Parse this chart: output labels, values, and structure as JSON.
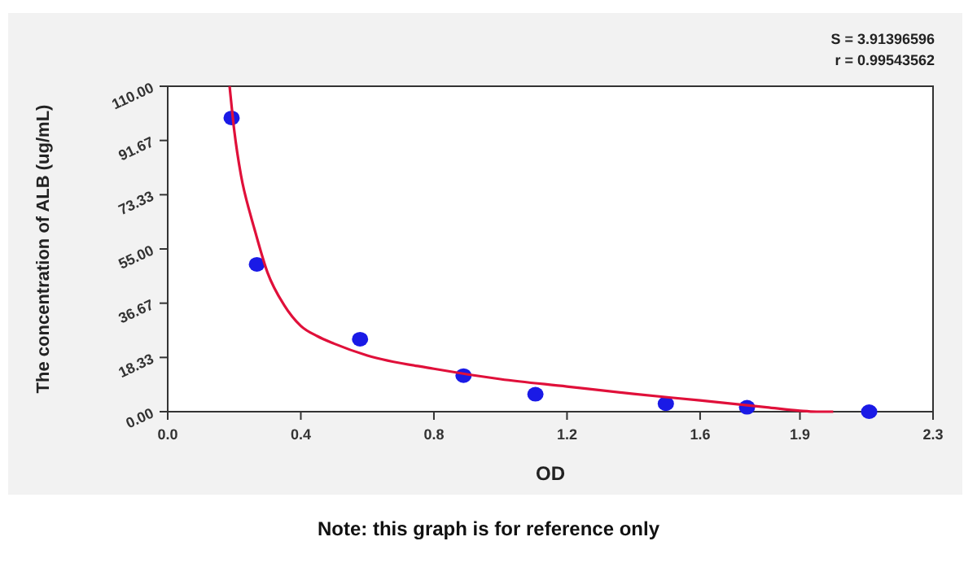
{
  "chart_data": {
    "type": "scatter",
    "xlabel": "OD",
    "ylabel": "The concentration of ALB (ug/mL)",
    "annotations": [
      "S = 3.91396596",
      "r = 0.99543562",
      "Note: this graph is for reference only"
    ],
    "xlim": [
      0,
      2.3
    ],
    "ylim": [
      0,
      110
    ],
    "xticks": [
      {
        "value": 0,
        "label": "0.0"
      },
      {
        "value": 0.4,
        "label": "0.4"
      },
      {
        "value": 0.8,
        "label": "0.8"
      },
      {
        "value": 1.2,
        "label": "1.2"
      },
      {
        "value": 1.6,
        "label": "1.6"
      },
      {
        "value": 1.9,
        "label": "1.9"
      },
      {
        "value": 2.3,
        "label": "2.3"
      }
    ],
    "yticks": [
      {
        "value": 0,
        "label": "0.00"
      },
      {
        "value": 18.33,
        "label": "18.33"
      },
      {
        "value": 36.67,
        "label": "36.67"
      },
      {
        "value": 55,
        "label": "55.00"
      },
      {
        "value": 73.33,
        "label": "73.33"
      },
      {
        "value": 91.67,
        "label": "91.67"
      },
      {
        "value": 110,
        "label": "110.00"
      }
    ],
    "grid": false,
    "series": [
      {
        "color": "#1a1ae6",
        "marker": "circle",
        "x": [
          0.192,
          0.268,
          0.578,
          0.889,
          1.105,
          1.497,
          1.741,
          2.108
        ],
        "values": [
          99.3,
          49.8,
          24.5,
          12.2,
          5.9,
          2.7,
          1.5,
          0
        ]
      },
      {
        "type": "line",
        "color": "#e0103a",
        "marker": "none",
        "x": [
          0.186,
          0.2,
          0.22,
          0.25,
          0.26,
          0.3,
          0.35,
          0.4,
          0.45,
          0.5,
          0.6,
          0.8,
          1.0,
          1.2,
          1.4,
          1.6,
          1.8,
          1.9,
          1.95,
          2.0
        ],
        "values": [
          110,
          95,
          80,
          66,
          62,
          47,
          36,
          29,
          25.5,
          23,
          19,
          14.5,
          11,
          8.5,
          6,
          3.8,
          1.5,
          0.3,
          0,
          0
        ]
      }
    ]
  }
}
